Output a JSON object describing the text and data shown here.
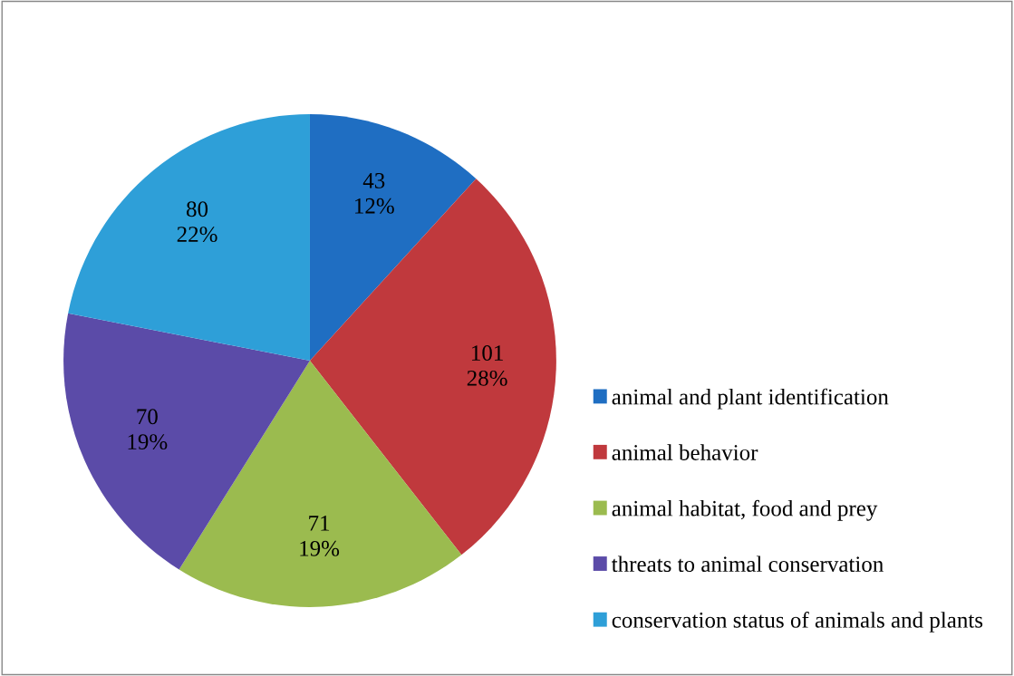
{
  "chart_data": {
    "type": "pie",
    "categories": [
      "animal and plant identification",
      "animal behavior",
      "animal habitat, food and prey",
      "threats to animal conservation",
      "conservation status of animals and plants"
    ],
    "values": [
      43,
      101,
      71,
      70,
      80
    ],
    "value_labels": [
      "43\n12%",
      "101\n28%",
      "71\n19%",
      "70\n19%",
      "80\n22%"
    ],
    "colors": [
      "#1f6ec2",
      "#c0393d",
      "#9bbb4f",
      "#5b4ba8",
      "#2e9fd8"
    ],
    "legend": "right"
  }
}
